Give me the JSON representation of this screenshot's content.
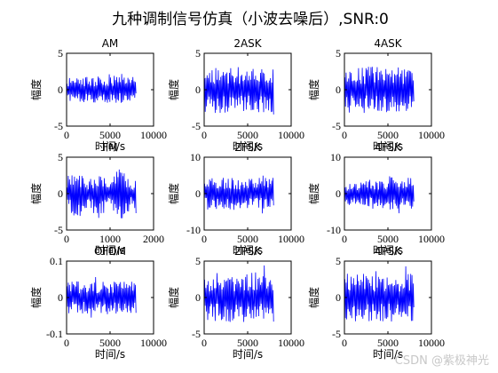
{
  "figure": {
    "title": "九种调制信号仿真（小波去噪后）,SNR:0"
  },
  "watermark": "CSDN @紫极神光",
  "chart_data": [
    {
      "type": "line",
      "title": "AM",
      "xlabel": "时间/s",
      "ylabel": "幅度",
      "xlim": [
        0,
        10000
      ],
      "ylim": [
        -5,
        5
      ],
      "xticks": [
        0,
        5000,
        10000
      ],
      "yticks": [
        -5,
        0,
        5
      ],
      "n": 8000,
      "amplitude": 1.8,
      "envelope": "uniform"
    },
    {
      "type": "line",
      "title": "2ASK",
      "xlabel": "时间/s",
      "ylabel": "幅度",
      "xlim": [
        0,
        10000
      ],
      "ylim": [
        -5,
        5
      ],
      "xticks": [
        0,
        5000,
        10000
      ],
      "yticks": [
        -5,
        0,
        5
      ],
      "n": 8000,
      "amplitude": 3.2,
      "envelope": "uniform"
    },
    {
      "type": "line",
      "title": "4ASK",
      "xlabel": "时间/s",
      "ylabel": "幅度",
      "xlim": [
        0,
        10000
      ],
      "ylim": [
        -5,
        5
      ],
      "xticks": [
        0,
        5000,
        10000
      ],
      "yticks": [
        -5,
        0,
        5
      ],
      "n": 8000,
      "amplitude": 3.2,
      "envelope": "uniform"
    },
    {
      "type": "line",
      "title": "FM",
      "xlabel": "时间/s",
      "ylabel": "幅度",
      "xlim": [
        0,
        2000
      ],
      "ylim": [
        -5,
        5
      ],
      "xticks": [
        0,
        1000,
        2000
      ],
      "yticks": [
        -5,
        0,
        5
      ],
      "n": 1600,
      "amplitude": 3.8,
      "envelope": "bursts"
    },
    {
      "type": "line",
      "title": "2FSK",
      "xlabel": "时间/s",
      "ylabel": "幅度",
      "xlim": [
        0,
        10000
      ],
      "ylim": [
        -10,
        10
      ],
      "xticks": [
        0,
        5000,
        10000
      ],
      "yticks": [
        -10,
        0,
        10
      ],
      "n": 8000,
      "amplitude": 4.5,
      "envelope": "uniform"
    },
    {
      "type": "line",
      "title": "4FSK",
      "xlabel": "时间/s",
      "ylabel": "幅度",
      "xlim": [
        0,
        10000
      ],
      "ylim": [
        -10,
        10
      ],
      "xticks": [
        0,
        5000,
        10000
      ],
      "yticks": [
        -10,
        0,
        10
      ],
      "n": 8000,
      "amplitude": 4.8,
      "envelope": "growing"
    },
    {
      "type": "line",
      "title": "OFDM",
      "xlabel": "时间/s",
      "ylabel": "幅度",
      "xlim": [
        0,
        10000
      ],
      "ylim": [
        -0.1,
        0.1
      ],
      "xticks": [
        0,
        5000,
        10000
      ],
      "yticks": [
        -0.1,
        0,
        0.1
      ],
      "n": 8000,
      "amplitude": 0.045,
      "envelope": "uniform"
    },
    {
      "type": "line",
      "title": "2PSK",
      "xlabel": "时间/s",
      "ylabel": "幅度",
      "xlim": [
        0,
        10000
      ],
      "ylim": [
        -5,
        5
      ],
      "xticks": [
        0,
        5000,
        10000
      ],
      "yticks": [
        -5,
        0,
        5
      ],
      "n": 8000,
      "amplitude": 3.4,
      "envelope": "uniform"
    },
    {
      "type": "line",
      "title": "4PSK",
      "xlabel": "时间/s",
      "ylabel": "幅度",
      "xlim": [
        0,
        10000
      ],
      "ylim": [
        -5,
        5
      ],
      "xticks": [
        0,
        5000,
        10000
      ],
      "yticks": [
        -5,
        0,
        5
      ],
      "n": 8000,
      "amplitude": 3.3,
      "envelope": "uniform"
    }
  ],
  "colors": {
    "series": "#0000ff",
    "axis": "#000000",
    "background": "#ffffff"
  }
}
